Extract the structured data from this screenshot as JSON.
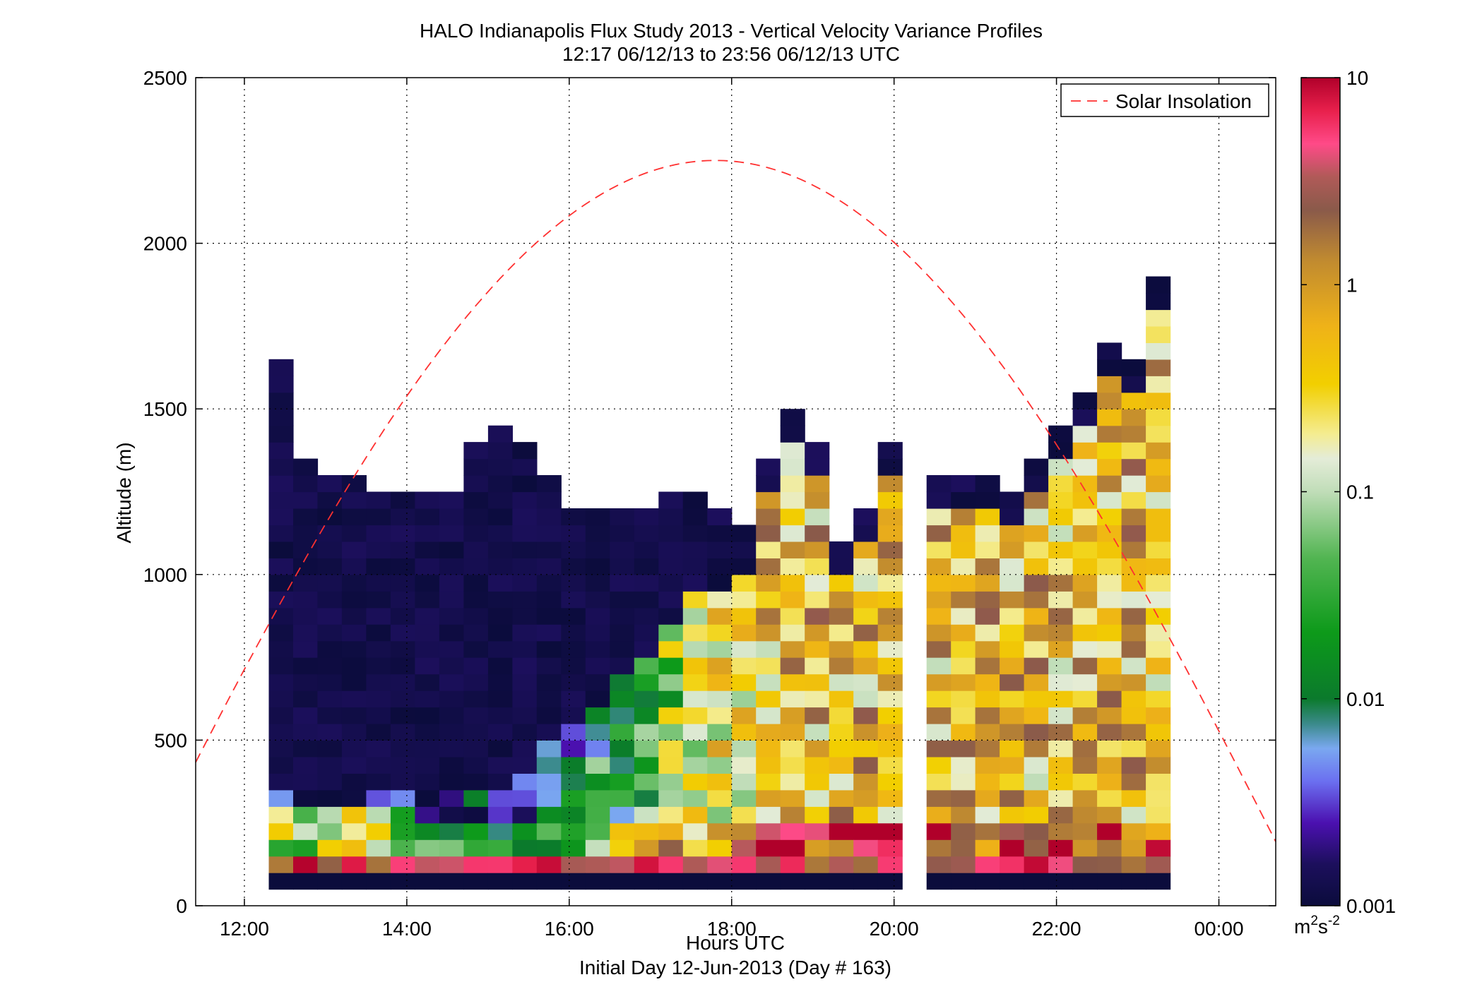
{
  "chart_data": {
    "type": "heatmap",
    "title": "HALO Indianapolis Flux Study 2013 - Vertical Velocity Variance Profiles",
    "subtitle": "12:17 06/12/13 to 23:56 06/12/13  UTC",
    "xlabel": "Hours UTC",
    "xlabel2": "Initial Day 12-Jun-2013 (Day # 163)",
    "ylabel": "Altitude (m)",
    "x_range_hours": [
      11.4,
      24.7
    ],
    "ylim": [
      0,
      2500
    ],
    "x_ticks": [
      12,
      14,
      16,
      18,
      20,
      22,
      24
    ],
    "x_tick_labels": [
      "12:00",
      "14:00",
      "16:00",
      "18:00",
      "20:00",
      "22:00",
      "00:00"
    ],
    "y_ticks": [
      0,
      500,
      1000,
      1500,
      2000,
      2500
    ],
    "y_tick_labels": [
      "0",
      "500",
      "1000",
      "1500",
      "2000",
      "2500"
    ],
    "grid": true,
    "legend": {
      "position": "top-right",
      "entries": [
        "Solar Insolation"
      ]
    },
    "solar_line": {
      "color": "#ff3030",
      "style": "dashed",
      "peak_hour": 17.8,
      "peak_altitude": 2250,
      "half_width_hours": 7.3
    },
    "colorbar": {
      "scale": "log",
      "range": [
        0.001,
        10
      ],
      "tick_labels": [
        "0.001",
        "0.01",
        "0.1",
        "1",
        "10"
      ],
      "unit_base": "m",
      "unit_sup1": "2",
      "unit_mid": "s",
      "unit_sup2": "-2",
      "stops": [
        [
          0.0,
          "#0b0c3c"
        ],
        [
          0.05,
          "#1c0f5c"
        ],
        [
          0.1,
          "#4b10b0"
        ],
        [
          0.15,
          "#6b6ff0"
        ],
        [
          0.19,
          "#7aa8f0"
        ],
        [
          0.22,
          "#3a8a8a"
        ],
        [
          0.25,
          "#0b7a2c"
        ],
        [
          0.33,
          "#0d9a1a"
        ],
        [
          0.42,
          "#52b552"
        ],
        [
          0.5,
          "#c0ddb8"
        ],
        [
          0.54,
          "#e4ecd8"
        ],
        [
          0.57,
          "#f4ec90"
        ],
        [
          0.63,
          "#f2cf00"
        ],
        [
          0.7,
          "#efb218"
        ],
        [
          0.78,
          "#c08a30"
        ],
        [
          0.84,
          "#8a5a4a"
        ],
        [
          0.88,
          "#b05a58"
        ],
        [
          0.92,
          "#ff4a88"
        ],
        [
          0.96,
          "#e8204c"
        ],
        [
          1.0,
          "#b0002a"
        ]
      ]
    },
    "bin_width_hours": 0.3,
    "bin_height_m": 50,
    "profile_start_hour": 12.3,
    "profile_tops_m": [
      1650,
      1350,
      1300,
      1300,
      1250,
      1250,
      1250,
      1250,
      1400,
      1450,
      1400,
      1300,
      1200,
      1200,
      1200,
      1200,
      1250,
      1250,
      1200,
      1150,
      1350,
      1500,
      1400,
      1100,
      1200,
      1400,
      1350,
      1300,
      1300,
      1300,
      1250,
      1350,
      1450,
      1550,
      1700,
      1650,
      1900
    ],
    "gap_hours": [
      [
        19.95,
        20.35
      ]
    ],
    "cells": "procedurally estimated log10 variance per 50 m bin"
  }
}
